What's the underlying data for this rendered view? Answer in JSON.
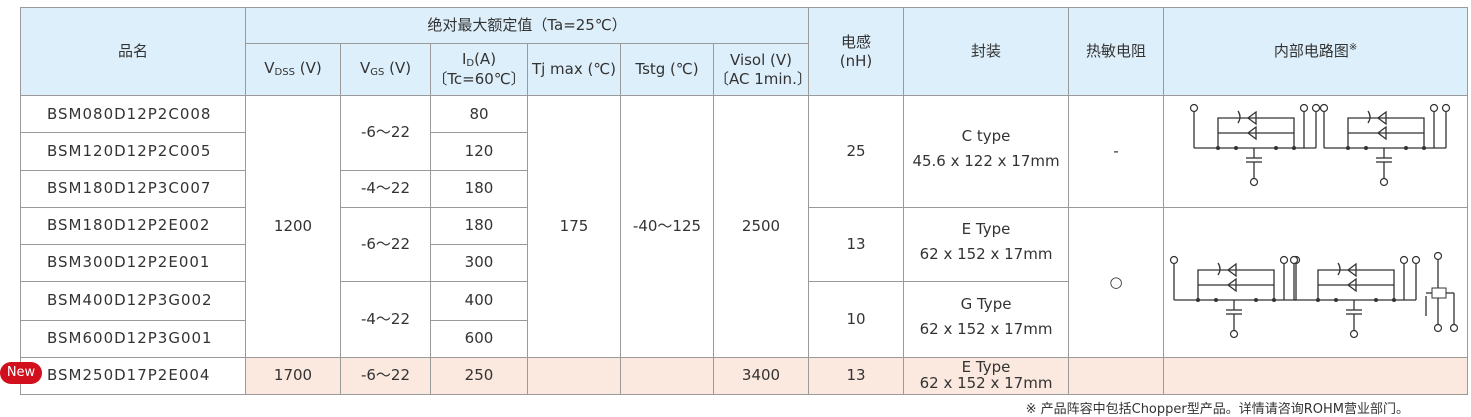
{
  "header": {
    "name": "品名",
    "abs_max": "绝对最大额定值（Ta=25℃）",
    "vdss": {
      "symbol": "V",
      "sub": "DSS",
      "unit": "(V)"
    },
    "vgs": {
      "symbol": "V",
      "sub": "GS",
      "unit": "(V)"
    },
    "id": {
      "symbol": "I",
      "sub": "D",
      "unit": "(A)",
      "condition": "〔Tc=60℃〕"
    },
    "tj": "Tj max (℃)",
    "tstg": "Tstg (℃)",
    "visol": {
      "label": "Visol (V)",
      "condition": "〔AC 1min.〕"
    },
    "inductance": {
      "label": "电感",
      "unit": "(nH)"
    },
    "package": "封装",
    "thermistor": "热敏电阻",
    "circuit": {
      "label": "内部电路图",
      "mark": "※"
    }
  },
  "table": {
    "rows": [
      {
        "name": "BSM080D12P2C008",
        "vdss": 1200,
        "vgs": "-6～22",
        "id": 80,
        "tj": 175,
        "tstg": "-40～125",
        "visol": 2500,
        "inductance": 25,
        "package": {
          "type": "C type",
          "size": "45.6 x 122 x 17mm"
        },
        "thermistor": "-"
      },
      {
        "name": "BSM120D12P2C005",
        "id": 120
      },
      {
        "name": "BSM180D12P3C007",
        "vgs": "-4～22",
        "id": 180
      },
      {
        "name": "BSM180D12P2E002",
        "vgs": "-6～22",
        "id": 180,
        "inductance": 13,
        "package": {
          "type": "E Type",
          "size": "62 x 152 x 17mm"
        },
        "thermistor": "○"
      },
      {
        "name": "BSM300D12P2E001",
        "id": 300
      },
      {
        "name": "BSM400D12P3G002",
        "vgs": "-4～22",
        "id": 400,
        "inductance": 10,
        "package": {
          "type": "G Type",
          "size": "62 x 152 x 17mm"
        }
      },
      {
        "name": "BSM600D12P3G001",
        "id": 600
      },
      {
        "name": "BSM250D17P2E004",
        "badge": "New",
        "vdss": 1700,
        "vgs": "-6～22",
        "id": 250,
        "visol": 3400,
        "inductance": 13,
        "package": {
          "type": "E Type",
          "size": "62 x 152 x 17mm"
        }
      }
    ]
  },
  "footnote": "※ 产品阵容中包括Chopper型产品。详情请咨询ROHM营业部门。"
}
